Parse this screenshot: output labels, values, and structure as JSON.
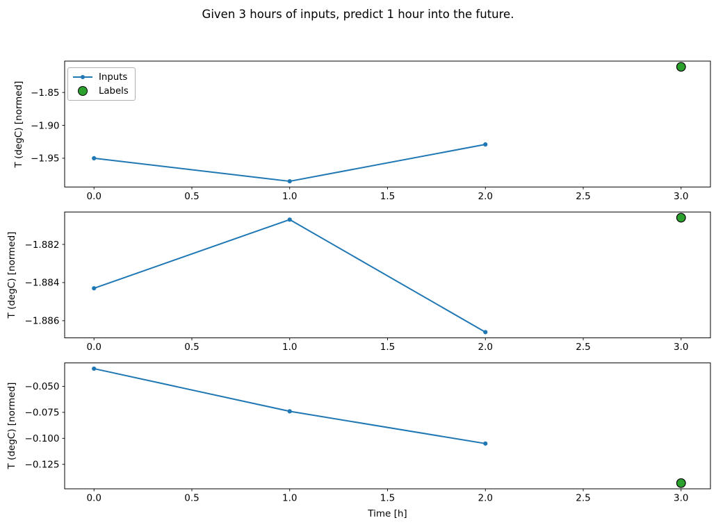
{
  "figure": {
    "title": "Given 3 hours of inputs, predict 1 hour into the future.",
    "background": "#ffffff"
  },
  "colors": {
    "inputs_line": "#1f77b4",
    "labels_fill": "#2ca02c",
    "labels_edge": "#000000",
    "spine": "#000000",
    "tick_text": "#000000"
  },
  "chart_data": [
    {
      "type": "line",
      "ylabel": "T (degC) [normed]",
      "legend": {
        "items": [
          {
            "label": "Inputs",
            "marker": "line-with-dot"
          },
          {
            "label": "Labels",
            "marker": "green-circle"
          }
        ]
      },
      "series": [
        {
          "name": "Inputs",
          "kind": "line",
          "x": [
            0.0,
            1.0,
            2.0
          ],
          "y": [
            -1.95,
            -1.985,
            -1.929
          ]
        },
        {
          "name": "Labels",
          "kind": "scatter",
          "x": [
            3.0
          ],
          "y": [
            -1.811
          ]
        }
      ],
      "xlim": [
        -0.15,
        3.15
      ],
      "ylim": [
        -1.9937,
        -1.8023
      ],
      "xticks": {
        "values": [
          0.0,
          0.5,
          1.0,
          1.5,
          2.0,
          2.5,
          3.0
        ],
        "labels": [
          "0.0",
          "0.5",
          "1.0",
          "1.5",
          "2.0",
          "2.5",
          "3.0"
        ]
      },
      "yticks": {
        "values": [
          -1.85,
          -1.9,
          -1.95
        ],
        "labels": [
          "−1.85",
          "−1.90",
          "−1.95"
        ]
      },
      "grid": false
    },
    {
      "type": "line",
      "ylabel": "T (degC) [normed]",
      "series": [
        {
          "name": "Inputs",
          "kind": "line",
          "x": [
            0.0,
            1.0,
            2.0
          ],
          "y": [
            -1.8843,
            -1.8807,
            -1.8866
          ]
        },
        {
          "name": "Labels",
          "kind": "scatter",
          "x": [
            3.0
          ],
          "y": [
            -1.8806
          ]
        }
      ],
      "xlim": [
        -0.15,
        3.15
      ],
      "ylim": [
        -1.8869,
        -1.8803
      ],
      "xticks": {
        "values": [
          0.0,
          0.5,
          1.0,
          1.5,
          2.0,
          2.5,
          3.0
        ],
        "labels": [
          "0.0",
          "0.5",
          "1.0",
          "1.5",
          "2.0",
          "2.5",
          "3.0"
        ]
      },
      "yticks": {
        "values": [
          -1.882,
          -1.884,
          -1.886
        ],
        "labels": [
          "−1.882",
          "−1.884",
          "−1.886"
        ]
      },
      "grid": false
    },
    {
      "type": "line",
      "ylabel": "T (degC) [normed]",
      "xlabel": "Time [h]",
      "series": [
        {
          "name": "Inputs",
          "kind": "line",
          "x": [
            0.0,
            1.0,
            2.0
          ],
          "y": [
            -0.033,
            -0.074,
            -0.105
          ]
        },
        {
          "name": "Labels",
          "kind": "scatter",
          "x": [
            3.0
          ],
          "y": [
            -0.143
          ]
        }
      ],
      "xlim": [
        -0.15,
        3.15
      ],
      "ylim": [
        -0.1485,
        -0.0275
      ],
      "xticks": {
        "values": [
          0.0,
          0.5,
          1.0,
          1.5,
          2.0,
          2.5,
          3.0
        ],
        "labels": [
          "0.0",
          "0.5",
          "1.0",
          "1.5",
          "2.0",
          "2.5",
          "3.0"
        ]
      },
      "yticks": {
        "values": [
          -0.05,
          -0.075,
          -0.1,
          -0.125
        ],
        "labels": [
          "−0.050",
          "−0.075",
          "−0.100",
          "−0.125"
        ]
      },
      "grid": false
    }
  ]
}
